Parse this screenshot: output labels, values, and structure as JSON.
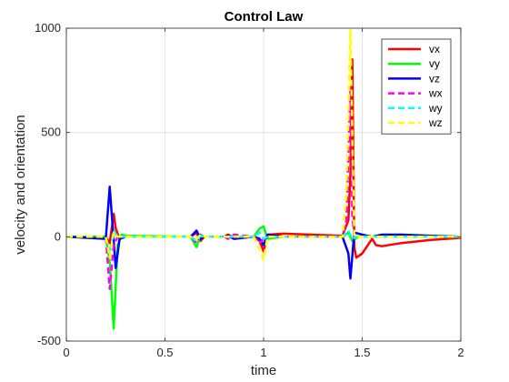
{
  "chart_data": {
    "type": "line",
    "title": "Control Law",
    "xlabel": "time",
    "ylabel": "velocity and orientation",
    "xlim": [
      0,
      2
    ],
    "ylim": [
      -500,
      1000
    ],
    "xticks": [
      "0",
      "0.5",
      "1",
      "1.5",
      "2"
    ],
    "yticks": [
      "-500",
      "0",
      "500",
      "1000"
    ],
    "grid": true,
    "legend_position": "top-right",
    "series": [
      {
        "name": "vx",
        "color": "#ff0000",
        "style": "solid",
        "points": [
          [
            0,
            0
          ],
          [
            0.2,
            0
          ],
          [
            0.22,
            -30
          ],
          [
            0.24,
            110
          ],
          [
            0.25,
            40
          ],
          [
            0.27,
            -10
          ],
          [
            0.3,
            0
          ],
          [
            0.63,
            0
          ],
          [
            0.66,
            20
          ],
          [
            0.68,
            -20
          ],
          [
            0.7,
            0
          ],
          [
            0.8,
            0
          ],
          [
            0.82,
            10
          ],
          [
            0.85,
            -5
          ],
          [
            0.95,
            0
          ],
          [
            0.98,
            -20
          ],
          [
            1.0,
            -70
          ],
          [
            1.02,
            10
          ],
          [
            1.1,
            15
          ],
          [
            1.4,
            5
          ],
          [
            1.43,
            80
          ],
          [
            1.44,
            300
          ],
          [
            1.45,
            850
          ],
          [
            1.46,
            -50
          ],
          [
            1.47,
            -100
          ],
          [
            1.5,
            -80
          ],
          [
            1.55,
            -10
          ],
          [
            1.57,
            -40
          ],
          [
            1.6,
            -45
          ],
          [
            1.7,
            -30
          ],
          [
            1.85,
            -15
          ],
          [
            2.0,
            -5
          ]
        ]
      },
      {
        "name": "vy",
        "color": "#00ff00",
        "style": "solid",
        "points": [
          [
            0,
            0
          ],
          [
            0.2,
            0
          ],
          [
            0.22,
            -120
          ],
          [
            0.24,
            -440
          ],
          [
            0.26,
            -40
          ],
          [
            0.28,
            10
          ],
          [
            0.3,
            5
          ],
          [
            0.63,
            0
          ],
          [
            0.66,
            -50
          ],
          [
            0.68,
            10
          ],
          [
            0.7,
            0
          ],
          [
            0.95,
            0
          ],
          [
            0.98,
            40
          ],
          [
            1.0,
            50
          ],
          [
            1.02,
            -10
          ],
          [
            1.1,
            0
          ],
          [
            1.4,
            0
          ],
          [
            1.43,
            20
          ],
          [
            1.45,
            -20
          ],
          [
            1.48,
            0
          ],
          [
            2.0,
            0
          ]
        ]
      },
      {
        "name": "vz",
        "color": "#0000ff",
        "style": "solid",
        "points": [
          [
            0,
            0
          ],
          [
            0.2,
            -10
          ],
          [
            0.22,
            240
          ],
          [
            0.24,
            -20
          ],
          [
            0.25,
            -150
          ],
          [
            0.27,
            -10
          ],
          [
            0.3,
            0
          ],
          [
            0.63,
            0
          ],
          [
            0.66,
            30
          ],
          [
            0.68,
            -10
          ],
          [
            0.7,
            0
          ],
          [
            0.8,
            0
          ],
          [
            0.82,
            5
          ],
          [
            0.85,
            -10
          ],
          [
            0.95,
            0
          ],
          [
            0.98,
            -10
          ],
          [
            1.0,
            -40
          ],
          [
            1.02,
            10
          ],
          [
            1.1,
            0
          ],
          [
            1.4,
            0
          ],
          [
            1.43,
            -80
          ],
          [
            1.44,
            -200
          ],
          [
            1.46,
            20
          ],
          [
            1.5,
            10
          ],
          [
            1.55,
            0
          ],
          [
            1.6,
            10
          ],
          [
            1.7,
            10
          ],
          [
            1.85,
            5
          ],
          [
            2.0,
            0
          ]
        ]
      },
      {
        "name": "wx",
        "color": "#ff00ff",
        "style": "dashed",
        "points": [
          [
            0,
            0
          ],
          [
            0.2,
            0
          ],
          [
            0.22,
            -250
          ],
          [
            0.24,
            -40
          ],
          [
            0.26,
            0
          ],
          [
            0.63,
            0
          ],
          [
            0.66,
            -30
          ],
          [
            0.68,
            10
          ],
          [
            0.7,
            0
          ],
          [
            0.8,
            0
          ],
          [
            0.82,
            -10
          ],
          [
            0.85,
            10
          ],
          [
            0.95,
            0
          ],
          [
            0.98,
            -30
          ],
          [
            1.0,
            -10
          ],
          [
            1.02,
            0
          ],
          [
            1.4,
            0
          ],
          [
            1.42,
            80
          ],
          [
            1.44,
            720
          ],
          [
            1.45,
            100
          ],
          [
            1.46,
            0
          ],
          [
            2.0,
            0
          ]
        ]
      },
      {
        "name": "wy",
        "color": "#00ffff",
        "style": "dashed",
        "points": [
          [
            0,
            0
          ],
          [
            0.2,
            0
          ],
          [
            0.22,
            -80
          ],
          [
            0.24,
            30
          ],
          [
            0.26,
            0
          ],
          [
            0.63,
            0
          ],
          [
            0.66,
            -20
          ],
          [
            0.68,
            5
          ],
          [
            0.7,
            0
          ],
          [
            0.95,
            0
          ],
          [
            0.98,
            20
          ],
          [
            1.0,
            -10
          ],
          [
            1.02,
            0
          ],
          [
            1.4,
            0
          ],
          [
            1.43,
            30
          ],
          [
            1.45,
            -10
          ],
          [
            1.47,
            0
          ],
          [
            2.0,
            0
          ]
        ]
      },
      {
        "name": "wz",
        "color": "#ffff00",
        "style": "dashed",
        "points": [
          [
            0,
            0
          ],
          [
            0.2,
            0
          ],
          [
            0.22,
            -100
          ],
          [
            0.24,
            20
          ],
          [
            0.26,
            0
          ],
          [
            0.63,
            0
          ],
          [
            0.66,
            -10
          ],
          [
            0.68,
            10
          ],
          [
            0.7,
            0
          ],
          [
            0.95,
            0
          ],
          [
            0.98,
            -60
          ],
          [
            1.0,
            -110
          ],
          [
            1.02,
            0
          ],
          [
            1.4,
            0
          ],
          [
            1.42,
            200
          ],
          [
            1.44,
            990
          ],
          [
            1.45,
            500
          ],
          [
            1.46,
            0
          ],
          [
            2.0,
            0
          ]
        ]
      }
    ]
  }
}
